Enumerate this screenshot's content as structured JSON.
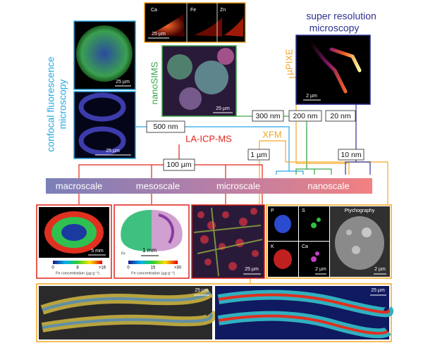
{
  "techniques": {
    "confocal": [
      "confocal fluorescence",
      "microscopy"
    ],
    "nanosims": "nanoSIMS",
    "upixe": "µPIXE",
    "super_resolution": [
      "super resolution",
      "microscopy"
    ],
    "la_icp_ms": "LA-ICP-MS",
    "xfm": "XFM"
  },
  "resolutions": {
    "r500nm": "500 nm",
    "r300nm": "300 nm",
    "r200nm": "200 nm",
    "r20nm": "20 nm",
    "r10nm": "10 nm",
    "r1um": "1 µm",
    "r100um": "100 µm"
  },
  "scales": [
    "macroscale",
    "mesoscale",
    "microscale",
    "nanoscale"
  ],
  "panels": {
    "confocal_top": {
      "scale": "25 µm"
    },
    "confocal_bottom": {
      "scale": "25 µm"
    },
    "upixe_elements": {
      "labels": [
        "Ca",
        "Fe",
        "Zn"
      ],
      "scale": "25 µm"
    },
    "nanosims": {
      "scale": "25 µm"
    },
    "super_resolution": {
      "scale": "2 µm"
    },
    "macro": {
      "scale": "5 mm",
      "colorbar_ticks": [
        "0",
        "8",
        ">16"
      ],
      "colorbar_label": "Fe concentration (µg g⁻¹)"
    },
    "meso": {
      "element": "Fe",
      "scale": "1 mm",
      "colorbar_ticks": [
        "0",
        "15",
        ">30"
      ],
      "colorbar_label": "Fe concentration (µg g⁻¹)"
    },
    "micro": {
      "scale": "25 µm"
    },
    "xfm_elements": {
      "labels": [
        "P",
        "S",
        "K",
        "Ca"
      ],
      "scale": "2 µm"
    },
    "ptychography": {
      "title": "Ptychography",
      "scale": "2 µm"
    },
    "bottom_left": {
      "scale": "25 µm"
    },
    "bottom_right": {
      "scale": "25 µm"
    }
  }
}
